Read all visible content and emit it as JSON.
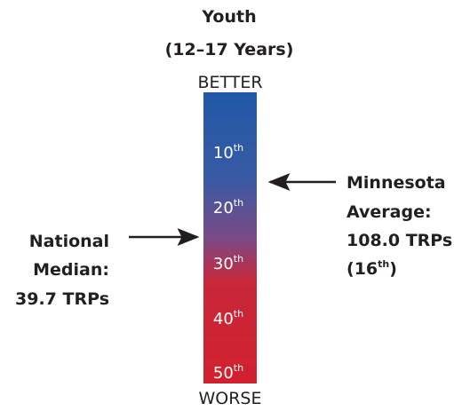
{
  "header": {
    "title": "Youth",
    "subtitle": "(12–17 Years)"
  },
  "scale": {
    "top": "BETTER",
    "bottom": "WORSE",
    "labels": [
      {
        "number": "10",
        "suffix": "th"
      },
      {
        "number": "20",
        "suffix": "th"
      },
      {
        "number": "30",
        "suffix": "th"
      },
      {
        "number": "40",
        "suffix": "th"
      },
      {
        "number": "50",
        "suffix": "th"
      }
    ]
  },
  "left_annotation": {
    "lines": [
      "National",
      "Median:",
      "39.7 TRPs"
    ]
  },
  "right_annotation": {
    "lines": [
      "Minnesota",
      "Average:",
      "108.0 TRPs"
    ],
    "rank": {
      "open": "(",
      "number": "16",
      "suffix": "th",
      "close": ")"
    }
  }
}
